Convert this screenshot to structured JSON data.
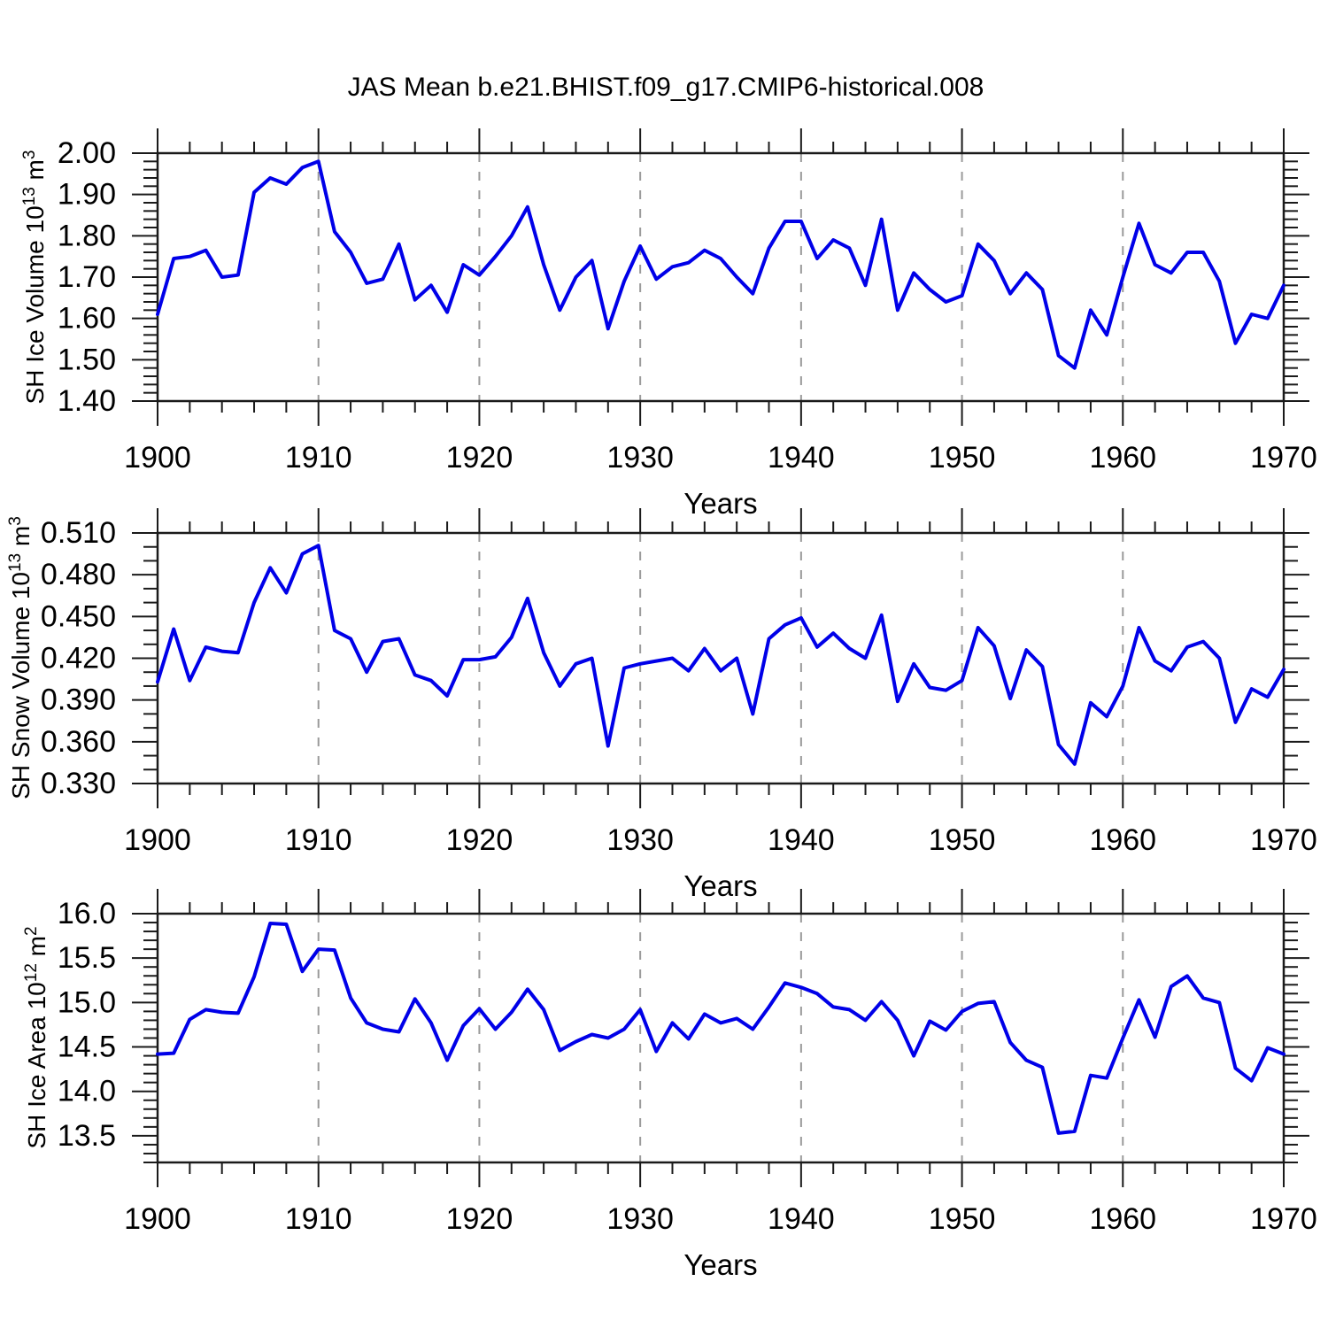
{
  "title": "JAS Mean b.e21.BHIST.f09_g17.CMIP6-historical.008",
  "colors": {
    "line": "#0000e8",
    "grid": "#9a9a9a",
    "frame": "#1a1a1a",
    "text": "#000000",
    "background": "#ffffff"
  },
  "x_axis": {
    "title": "Years",
    "major_ticks": [
      1900,
      1910,
      1920,
      1930,
      1940,
      1950,
      1960,
      1970
    ],
    "minor_step": 2,
    "grid_years": [
      1910,
      1920,
      1930,
      1940,
      1950,
      1960
    ],
    "range": [
      1900,
      1970
    ]
  },
  "chart_data": [
    {
      "type": "line",
      "name": "sh-ice-volume",
      "ylabel": {
        "prefix": "SH Ice Volume 10",
        "sup1": "13",
        "mid": " m",
        "sup2": "3"
      },
      "ylim": [
        1.4,
        2.0
      ],
      "y_major_ticks": [
        2.0,
        1.9,
        1.8,
        1.7,
        1.6,
        1.5,
        1.4
      ],
      "y_tick_labels": [
        "2.00",
        "1.90",
        "1.80",
        "1.70",
        "1.60",
        "1.50",
        "1.40"
      ],
      "y_minor_step": 0.02,
      "x_start": 1900,
      "x_step": 1,
      "values": [
        1.61,
        1.745,
        1.75,
        1.765,
        1.7,
        1.705,
        1.905,
        1.94,
        1.925,
        1.965,
        1.98,
        1.81,
        1.76,
        1.685,
        1.695,
        1.78,
        1.645,
        1.68,
        1.615,
        1.73,
        1.705,
        1.75,
        1.8,
        1.87,
        1.73,
        1.62,
        1.7,
        1.74,
        1.575,
        1.69,
        1.775,
        1.695,
        1.725,
        1.735,
        1.765,
        1.745,
        1.7,
        1.66,
        1.77,
        1.835,
        1.835,
        1.745,
        1.79,
        1.77,
        1.68,
        1.84,
        1.62,
        1.71,
        1.67,
        1.64,
        1.655,
        1.78,
        1.74,
        1.66,
        1.71,
        1.67,
        1.51,
        1.48,
        1.62,
        1.56,
        1.7,
        1.83,
        1.73,
        1.71,
        1.76,
        1.76,
        1.69,
        1.54,
        1.61,
        1.6,
        1.68
      ]
    },
    {
      "type": "line",
      "name": "sh-snow-volume",
      "ylabel": {
        "prefix": "SH Snow Volume 10",
        "sup1": "13",
        "mid": " m",
        "sup2": "3"
      },
      "ylim": [
        0.33,
        0.51
      ],
      "y_major_ticks": [
        0.51,
        0.48,
        0.45,
        0.42,
        0.39,
        0.36,
        0.33
      ],
      "y_tick_labels": [
        "0.510",
        "0.480",
        "0.450",
        "0.420",
        "0.390",
        "0.360",
        "0.330"
      ],
      "y_minor_step": 0.01,
      "x_start": 1900,
      "x_step": 1,
      "values": [
        0.403,
        0.441,
        0.404,
        0.428,
        0.425,
        0.424,
        0.46,
        0.485,
        0.467,
        0.495,
        0.501,
        0.44,
        0.434,
        0.41,
        0.432,
        0.434,
        0.408,
        0.404,
        0.393,
        0.419,
        0.419,
        0.421,
        0.435,
        0.463,
        0.424,
        0.4,
        0.416,
        0.42,
        0.357,
        0.413,
        0.416,
        0.418,
        0.42,
        0.411,
        0.427,
        0.411,
        0.42,
        0.38,
        0.434,
        0.444,
        0.449,
        0.428,
        0.438,
        0.427,
        0.42,
        0.451,
        0.389,
        0.416,
        0.399,
        0.397,
        0.404,
        0.442,
        0.429,
        0.391,
        0.426,
        0.414,
        0.358,
        0.344,
        0.388,
        0.378,
        0.4,
        0.442,
        0.418,
        0.411,
        0.428,
        0.432,
        0.42,
        0.374,
        0.398,
        0.392,
        0.412
      ]
    },
    {
      "type": "line",
      "name": "sh-ice-area",
      "ylabel": {
        "prefix": "SH Ice Area 10",
        "sup1": "12",
        "mid": " m",
        "sup2": "2"
      },
      "ylim": [
        13.2,
        16.0
      ],
      "y_major_ticks": [
        16.0,
        15.5,
        15.0,
        14.5,
        14.0,
        13.5
      ],
      "y_tick_labels": [
        "16.0",
        "15.5",
        "15.0",
        "14.5",
        "14.0",
        "13.5"
      ],
      "y_minor_step": 0.1,
      "x_start": 1900,
      "x_step": 1,
      "values": [
        14.42,
        14.43,
        14.81,
        14.92,
        14.89,
        14.88,
        15.29,
        15.89,
        15.88,
        15.35,
        15.6,
        15.59,
        15.05,
        14.77,
        14.7,
        14.67,
        15.04,
        14.77,
        14.35,
        14.74,
        14.93,
        14.7,
        14.89,
        15.15,
        14.92,
        14.46,
        14.56,
        14.64,
        14.6,
        14.7,
        14.92,
        14.45,
        14.77,
        14.59,
        14.87,
        14.77,
        14.82,
        14.7,
        14.95,
        15.22,
        15.17,
        15.1,
        14.95,
        14.92,
        14.8,
        15.01,
        14.8,
        14.4,
        14.79,
        14.69,
        14.9,
        14.99,
        15.01,
        14.55,
        14.35,
        14.27,
        13.53,
        13.55,
        14.18,
        14.15,
        14.6,
        15.03,
        14.61,
        15.18,
        15.3,
        15.05,
        15.0,
        14.26,
        14.12,
        14.49,
        14.42
      ]
    }
  ]
}
